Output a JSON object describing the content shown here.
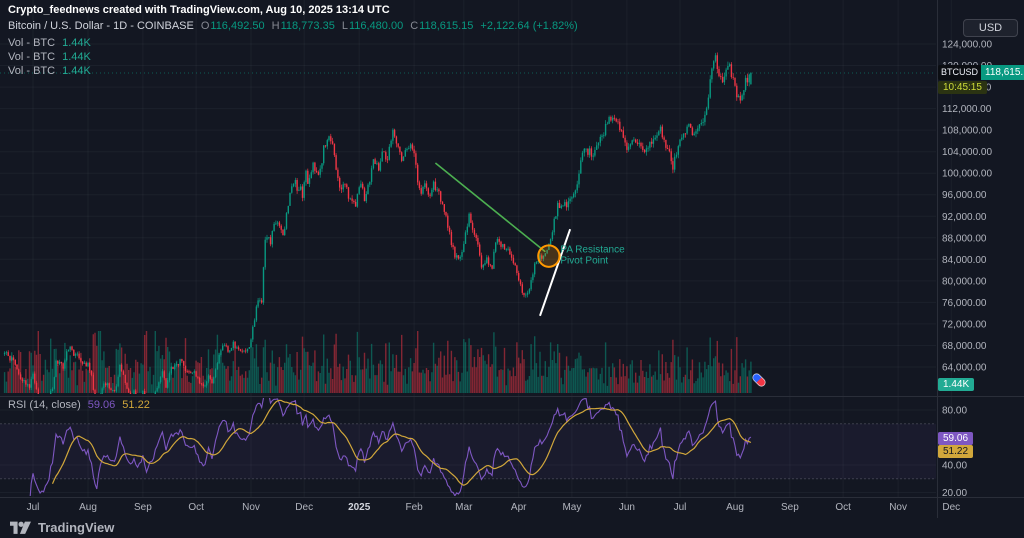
{
  "attribution": "Crypto_feednews created with TradingView.com, Aug 10, 2025 13:14 UTC",
  "legend": {
    "symbol": "Bitcoin / U.S. Dollar - 1D - COINBASE",
    "o_label": "O",
    "o": "116,492.50",
    "h_label": "H",
    "h": "118,773.35",
    "l_label": "L",
    "l": "116,480.00",
    "c_label": "C",
    "c": "118,615.15",
    "change": "+2,122.64 (+1.82%)",
    "vol_rows": [
      {
        "label": "Vol - BTC",
        "value": "1.44K"
      },
      {
        "label": "Vol - BTC",
        "value": "1.44K"
      },
      {
        "label": "Vol - BTC",
        "value": "1.44K"
      }
    ]
  },
  "price_scale": {
    "currency_button": "USD",
    "symbol_badge": "BTCUSD",
    "last_price": "118,615.15",
    "countdown": "10:45:15",
    "volume_badge": "1.44K",
    "ticks": [
      64000,
      68000,
      72000,
      76000,
      80000,
      84000,
      88000,
      92000,
      96000,
      100000,
      104000,
      108000,
      112000,
      116000,
      120000,
      124000
    ]
  },
  "rsi": {
    "legend": "RSI (14, close)",
    "value": "59.06",
    "ma_value": "51.22",
    "ticks": [
      80,
      40,
      20
    ],
    "overbought": 70,
    "oversold": 30
  },
  "time_axis": {
    "labels": [
      {
        "d": 0,
        "t": "Jul"
      },
      {
        "d": 31,
        "t": "Aug"
      },
      {
        "d": 62,
        "t": "Sep"
      },
      {
        "d": 92,
        "t": "Oct"
      },
      {
        "d": 123,
        "t": "Nov"
      },
      {
        "d": 153,
        "t": "Dec"
      },
      {
        "d": 184,
        "t": "2025"
      },
      {
        "d": 215,
        "t": "Feb"
      },
      {
        "d": 243,
        "t": "Mar"
      },
      {
        "d": 274,
        "t": "Apr"
      },
      {
        "d": 304,
        "t": "May"
      },
      {
        "d": 335,
        "t": "Jun"
      },
      {
        "d": 365,
        "t": "Jul"
      },
      {
        "d": 396,
        "t": "Aug"
      },
      {
        "d": 427,
        "t": "Sep"
      },
      {
        "d": 457,
        "t": "Oct"
      },
      {
        "d": 488,
        "t": "Nov"
      },
      {
        "d": 518,
        "t": "Dec"
      }
    ]
  },
  "annotations": {
    "green_trendline": {
      "from": {
        "d": 227,
        "p": 101900
      },
      "to": {
        "d": 289,
        "p": 85400
      }
    },
    "white_trendline": {
      "from": {
        "d": 286,
        "p": 73500
      },
      "to": {
        "d": 303,
        "p": 89600
      }
    },
    "ellipse": {
      "d": 291,
      "p": 84600,
      "rd": 6,
      "rp": 2000
    },
    "note": {
      "d": 297.5,
      "p": 85300,
      "lines": [
        "PA Resistance",
        "Pivot Point"
      ]
    }
  },
  "footer": {
    "brand": "TradingView"
  },
  "colors": {
    "background": "#131722",
    "grid": "rgba(178,181,190,0.06)",
    "axis_text": "#b2b5be",
    "separator": "#2a2e39",
    "up": "#089981",
    "down": "#f23645",
    "teal": "#22ab94",
    "rsi_line": "#7e57c2",
    "rsi_ma": "#d1a73b",
    "annotation_green": "#4caf50",
    "annotation_white": "#ffffff",
    "annotation_orange": "#ff9800",
    "countdown_text": "#cddc39"
  },
  "chart_data": {
    "type": "candlestick",
    "symbol": "BTCUSD",
    "exchange": "COINBASE",
    "interval": "1D",
    "title": "Bitcoin / U.S. Dollar, 1D, COINBASE",
    "last_ohlc": {
      "open": 116492.5,
      "high": 118773.35,
      "low": 116480.0,
      "close": 118615.15,
      "change": 2122.64,
      "change_pct": 1.82
    },
    "rsi_last": {
      "rsi": 59.06,
      "rsi_ma": 51.22
    },
    "volume_last": "1.44K",
    "y_axis": {
      "min": 64000,
      "max": 124000,
      "tick_step": 4000
    },
    "x_axis": {
      "start_label": "Jul",
      "end_label": "Dec",
      "unit": "day"
    },
    "price_anchors": [
      [
        -16,
        66700
      ],
      [
        -13,
        65700
      ],
      [
        -10,
        64900
      ],
      [
        -7,
        61900
      ],
      [
        -5,
        61200
      ],
      [
        -2,
        60300
      ],
      [
        0,
        62800
      ],
      [
        2,
        60200
      ],
      [
        4,
        57100
      ],
      [
        6,
        56600
      ],
      [
        9,
        58200
      ],
      [
        11,
        60300
      ],
      [
        13,
        64700
      ],
      [
        15,
        64900
      ],
      [
        17,
        64200
      ],
      [
        19,
        66500
      ],
      [
        21,
        67800
      ],
      [
        23,
        66300
      ],
      [
        25,
        66900
      ],
      [
        28,
        64600
      ],
      [
        31,
        64600
      ],
      [
        33,
        62200
      ],
      [
        35,
        57200
      ],
      [
        36,
        54900
      ],
      [
        38,
        59000
      ],
      [
        40,
        61000
      ],
      [
        42,
        60900
      ],
      [
        44,
        59300
      ],
      [
        46,
        59400
      ],
      [
        48,
        61700
      ],
      [
        49,
        64400
      ],
      [
        52,
        61000
      ],
      [
        55,
        59000
      ],
      [
        57,
        59900
      ],
      [
        59,
        57800
      ],
      [
        62,
        59100
      ],
      [
        64,
        56200
      ],
      [
        66,
        57500
      ],
      [
        68,
        58100
      ],
      [
        70,
        60400
      ],
      [
        73,
        62900
      ],
      [
        75,
        60600
      ],
      [
        77,
        63200
      ],
      [
        79,
        64100
      ],
      [
        81,
        64400
      ],
      [
        84,
        65400
      ],
      [
        86,
        63600
      ],
      [
        88,
        63100
      ],
      [
        91,
        63500
      ],
      [
        93,
        61700
      ],
      [
        95,
        60900
      ],
      [
        97,
        60800
      ],
      [
        99,
        62100
      ],
      [
        101,
        61100
      ],
      [
        103,
        63700
      ],
      [
        106,
        67600
      ],
      [
        108,
        68400
      ],
      [
        110,
        66900
      ],
      [
        113,
        68300
      ],
      [
        116,
        67400
      ],
      [
        119,
        66700
      ],
      [
        121,
        67000
      ],
      [
        123,
        69400
      ],
      [
        125,
        72700
      ],
      [
        126,
        75600
      ],
      [
        128,
        76000
      ],
      [
        129,
        76500
      ],
      [
        131,
        88000
      ],
      [
        132,
        88700
      ],
      [
        134,
        87300
      ],
      [
        136,
        90400
      ],
      [
        139,
        90600
      ],
      [
        141,
        88100
      ],
      [
        143,
        92000
      ],
      [
        145,
        97000
      ],
      [
        146,
        98200
      ],
      [
        148,
        99000
      ],
      [
        149,
        97000
      ],
      [
        151,
        97500
      ],
      [
        152,
        95900
      ],
      [
        154,
        101100
      ],
      [
        155,
        98300
      ],
      [
        157,
        100000
      ],
      [
        158,
        101400
      ],
      [
        160,
        100100
      ],
      [
        161,
        99000
      ],
      [
        163,
        101100
      ],
      [
        164,
        104700
      ],
      [
        166,
        106100
      ],
      [
        169,
        106200
      ],
      [
        171,
        100300
      ],
      [
        173,
        97200
      ],
      [
        176,
        97500
      ],
      [
        179,
        95200
      ],
      [
        182,
        94300
      ],
      [
        185,
        98300
      ],
      [
        187,
        94700
      ],
      [
        190,
        98600
      ],
      [
        192,
        102300
      ],
      [
        195,
        100600
      ],
      [
        197,
        104500
      ],
      [
        200,
        102600
      ],
      [
        203,
        108700
      ],
      [
        205,
        105100
      ],
      [
        208,
        102900
      ],
      [
        211,
        104800
      ],
      [
        213,
        106000
      ],
      [
        216,
        101400
      ],
      [
        218,
        96600
      ],
      [
        221,
        97600
      ],
      [
        224,
        96100
      ],
      [
        226,
        98100
      ],
      [
        229,
        96300
      ],
      [
        233,
        91600
      ],
      [
        235,
        88700
      ],
      [
        238,
        84400
      ],
      [
        241,
        84300
      ],
      [
        243,
        86200
      ],
      [
        246,
        92600
      ],
      [
        249,
        88000
      ],
      [
        251,
        86900
      ],
      [
        253,
        83000
      ],
      [
        256,
        84100
      ],
      [
        259,
        82700
      ],
      [
        261,
        87200
      ],
      [
        264,
        86900
      ],
      [
        267,
        86400
      ],
      [
        270,
        84300
      ],
      [
        272,
        82400
      ],
      [
        275,
        79200
      ],
      [
        277,
        76800
      ],
      [
        279,
        78100
      ],
      [
        281,
        79600
      ],
      [
        283,
        83400
      ],
      [
        285,
        83700
      ],
      [
        287,
        84500
      ],
      [
        289,
        84500
      ],
      [
        292,
        87400
      ],
      [
        294,
        91200
      ],
      [
        296,
        93900
      ],
      [
        299,
        94700
      ],
      [
        301,
        94200
      ],
      [
        304,
        94800
      ],
      [
        306,
        96900
      ],
      [
        309,
        102100
      ],
      [
        311,
        103900
      ],
      [
        313,
        104100
      ],
      [
        316,
        103500
      ],
      [
        318,
        105200
      ],
      [
        321,
        106900
      ],
      [
        324,
        109600
      ],
      [
        326,
        110600
      ],
      [
        328,
        109700
      ],
      [
        331,
        108800
      ],
      [
        333,
        106200
      ],
      [
        335,
        103900
      ],
      [
        338,
        105400
      ],
      [
        340,
        106300
      ],
      [
        343,
        104600
      ],
      [
        345,
        103800
      ],
      [
        348,
        105600
      ],
      [
        350,
        105800
      ],
      [
        352,
        107100
      ],
      [
        354,
        108000
      ],
      [
        356,
        106100
      ],
      [
        358,
        104500
      ],
      [
        361,
        101300
      ],
      [
        363,
        104200
      ],
      [
        366,
        107300
      ],
      [
        368,
        108200
      ],
      [
        371,
        108600
      ],
      [
        373,
        107100
      ],
      [
        375,
        107900
      ],
      [
        377,
        108900
      ],
      [
        379,
        110200
      ],
      [
        381,
        113500
      ],
      [
        382,
        117400
      ],
      [
        384,
        120100
      ],
      [
        385,
        122100
      ],
      [
        386,
        119800
      ],
      [
        388,
        118000
      ],
      [
        389,
        117500
      ],
      [
        391,
        118900
      ],
      [
        393,
        119600
      ],
      [
        395,
        117300
      ],
      [
        397,
        114600
      ],
      [
        399,
        113900
      ],
      [
        400,
        113600
      ],
      [
        401,
        114800
      ],
      [
        402,
        116900
      ],
      [
        403,
        117000
      ],
      [
        404,
        117900
      ],
      [
        405,
        118615.15
      ]
    ]
  }
}
